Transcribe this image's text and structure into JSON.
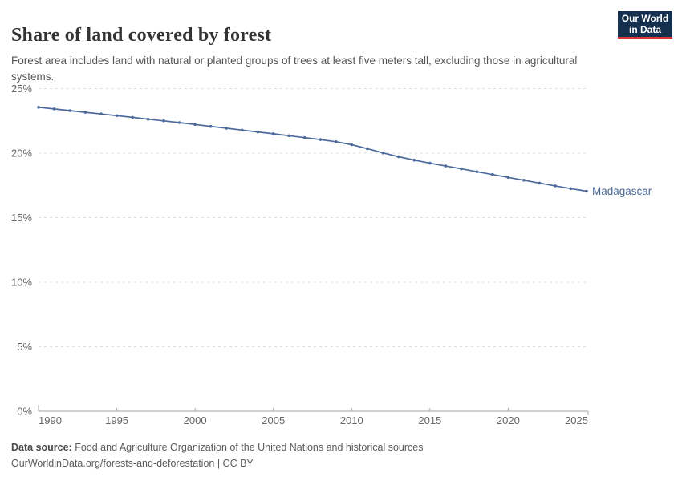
{
  "header": {
    "title": "Share of land covered by forest",
    "subtitle": "Forest area includes land with natural or planted groups of trees at least five meters tall, excluding those in agricultural systems.",
    "logo": {
      "line1": "Our World",
      "line2": "in Data",
      "bg_color": "#15304e",
      "accent_color": "#d93a34"
    }
  },
  "chart_data": {
    "type": "line",
    "title": "Share of land covered by forest",
    "xlabel": "",
    "ylabel": "",
    "xlim": [
      1990,
      2025
    ],
    "ylim": [
      0,
      25
    ],
    "x_ticks": [
      1990,
      1995,
      2000,
      2005,
      2010,
      2015,
      2020,
      2025
    ],
    "y_ticks": [
      0,
      5,
      10,
      15,
      20,
      25
    ],
    "y_tick_suffix": "%",
    "grid": "horizontal-dashed",
    "legend_position": "end-of-line-label",
    "series": [
      {
        "name": "Madagascar",
        "color": "#4C6A9C",
        "years": [
          1990,
          1991,
          1992,
          1993,
          1994,
          1995,
          1996,
          1997,
          1998,
          1999,
          2000,
          2001,
          2002,
          2003,
          2004,
          2005,
          2006,
          2007,
          2008,
          2009,
          2010,
          2011,
          2012,
          2013,
          2014,
          2015,
          2016,
          2017,
          2018,
          2019,
          2020,
          2021,
          2022,
          2023,
          2024,
          2025
        ],
        "values": [
          23.55,
          23.42,
          23.29,
          23.16,
          23.03,
          22.9,
          22.77,
          22.63,
          22.5,
          22.36,
          22.22,
          22.07,
          21.93,
          21.78,
          21.64,
          21.5,
          21.35,
          21.2,
          21.05,
          20.88,
          20.65,
          20.35,
          20.02,
          19.72,
          19.46,
          19.22,
          19.0,
          18.78,
          18.56,
          18.34,
          18.12,
          17.9,
          17.68,
          17.46,
          17.25,
          17.05
        ]
      }
    ]
  },
  "colors": {
    "line": "#4C6A9C",
    "gridline": "#dedede",
    "axis": "#a1a1a1",
    "tick_label": "#666666",
    "title": "#333333",
    "subtitle": "#555555",
    "footer": "#5b5b5b",
    "logo_bg": "#15304e",
    "logo_accent": "#d93a34"
  },
  "footer": {
    "data_source_label": "Data source:",
    "data_source_text": "Food and Agriculture Organization of the United Nations and historical sources",
    "citation_line": "OurWorldinData.org/forests-and-deforestation | CC BY"
  }
}
